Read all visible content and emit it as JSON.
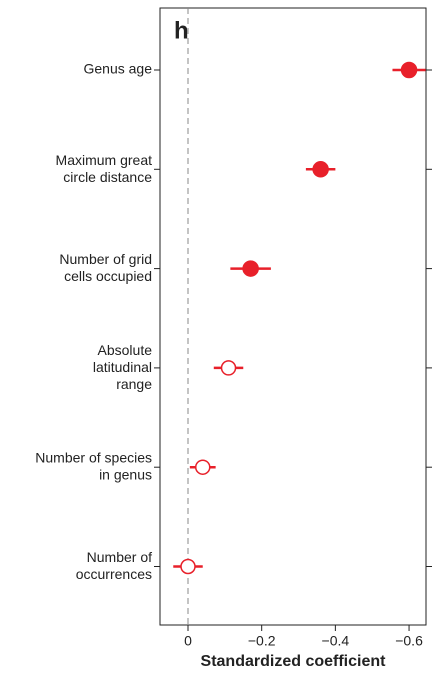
{
  "chart_data": {
    "type": "dot-error",
    "panel_label": "h",
    "xlabel": "Standardized coefficient",
    "categories": [
      "Genus age",
      "Maximum great\ncircle distance",
      "Number of grid\ncells occupied",
      "Absolute\nlatitudinal\nrange",
      "Number of species\nin genus",
      "Number of\noccurrences"
    ],
    "values": [
      -0.6,
      -0.36,
      -0.17,
      -0.11,
      -0.04,
      0.0
    ],
    "errors": [
      0.045,
      0.04,
      0.055,
      0.04,
      0.035,
      0.04
    ],
    "filled": [
      true,
      true,
      true,
      false,
      false,
      false
    ],
    "color": "#e8202a",
    "reference_line": 0,
    "xlim": [
      0.076,
      -0.646
    ],
    "xticks": [
      0,
      {
        "value": -0.2,
        "label": "−0.2"
      },
      {
        "value": -0.4,
        "label": "−0.4"
      },
      {
        "value": -0.6,
        "label": "−0.6"
      }
    ]
  }
}
